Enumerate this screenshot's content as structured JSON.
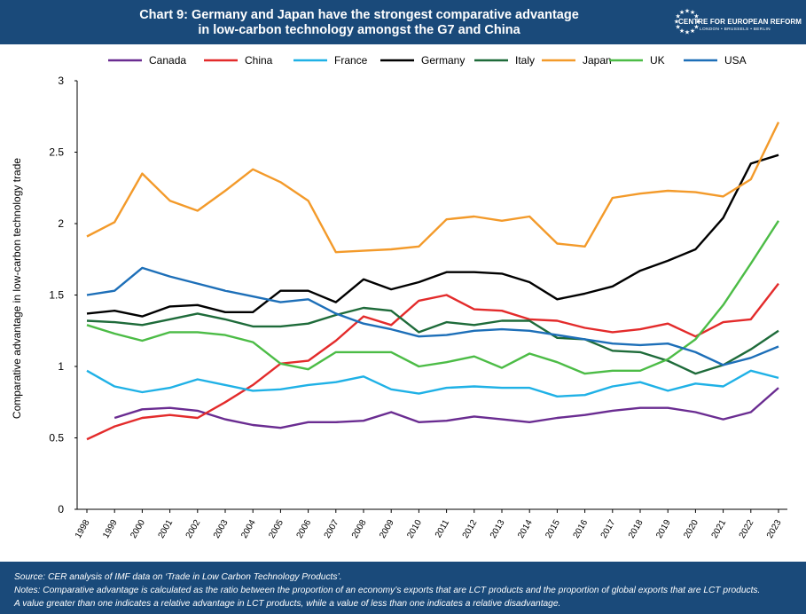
{
  "header": {
    "title_line1": "Chart 9: Germany and Japan have the strongest comparative advantage",
    "title_line2": "in low-carbon technology amongst the G7 and China",
    "logo_text": "CENTRE FOR EUROPEAN REFORM",
    "logo_subtext": "LONDON • BRUSSELS • BERLIN"
  },
  "footer": {
    "source": "Source: CER analysis of IMF data on ‘Trade in Low Carbon Technology Products’.",
    "notes_line1": "Notes: Comparative advantage is calculated as the ratio between the proportion of an economy’s exports that are LCT products and the proportion of global exports that are LCT products.",
    "notes_line2": "A value greater than one indicates a relative advantage in LCT products, while a value of less than one indicates a relative disadvantage."
  },
  "colors": {
    "brand": "#1a4a7a"
  },
  "chart_data": {
    "type": "line",
    "title": "Chart 9: Germany and Japan have the strongest comparative advantage in low-carbon technology amongst the G7 and China",
    "xlabel": "",
    "ylabel": "Comparative advantage in low-carbon technology trade",
    "ylim": [
      0,
      3
    ],
    "yticks": [
      "0",
      "0.5",
      "1",
      "1.5",
      "2",
      "2.5",
      "3"
    ],
    "grid": false,
    "legend_position": "top",
    "x": [
      "1998",
      "1999",
      "2000",
      "2001",
      "2002",
      "2003",
      "2004",
      "2005",
      "2006",
      "2007",
      "2008",
      "2009",
      "2010",
      "2011",
      "2012",
      "2013",
      "2014",
      "2015",
      "2016",
      "2017",
      "2018",
      "2019",
      "2020",
      "2021",
      "2022",
      "2023"
    ],
    "series": [
      {
        "name": "Canada",
        "color": "#6a2c91",
        "values": [
          null,
          0.64,
          0.7,
          0.71,
          0.69,
          0.63,
          0.59,
          0.57,
          0.61,
          0.61,
          0.62,
          0.68,
          0.61,
          0.62,
          0.65,
          0.63,
          0.61,
          0.64,
          0.66,
          0.69,
          0.71,
          0.71,
          0.68,
          0.63,
          0.68,
          0.85
        ]
      },
      {
        "name": "China",
        "color": "#e32b2b",
        "values": [
          0.49,
          0.58,
          0.64,
          0.66,
          0.64,
          0.75,
          0.87,
          1.02,
          1.04,
          1.18,
          1.35,
          1.29,
          1.46,
          1.5,
          1.4,
          1.39,
          1.33,
          1.32,
          1.27,
          1.24,
          1.26,
          1.3,
          1.21,
          1.31,
          1.33,
          1.58
        ]
      },
      {
        "name": "France",
        "color": "#1fb1e6",
        "values": [
          0.97,
          0.86,
          0.82,
          0.85,
          0.91,
          0.87,
          0.83,
          0.84,
          0.87,
          0.89,
          0.93,
          0.84,
          0.81,
          0.85,
          0.86,
          0.85,
          0.85,
          0.79,
          0.8,
          0.86,
          0.89,
          0.83,
          0.88,
          0.86,
          0.97,
          0.92
        ]
      },
      {
        "name": "Germany",
        "color": "#000000",
        "values": [
          1.37,
          1.39,
          1.35,
          1.42,
          1.43,
          1.38,
          1.38,
          1.53,
          1.53,
          1.45,
          1.61,
          1.54,
          1.59,
          1.66,
          1.66,
          1.65,
          1.59,
          1.47,
          1.51,
          1.56,
          1.67,
          1.74,
          1.82,
          2.04,
          2.42,
          2.48
        ]
      },
      {
        "name": "Italy",
        "color": "#1e6b3a",
        "values": [
          1.32,
          1.31,
          1.29,
          1.33,
          1.37,
          1.33,
          1.28,
          1.28,
          1.3,
          1.36,
          1.41,
          1.39,
          1.24,
          1.31,
          1.29,
          1.32,
          1.32,
          1.2,
          1.19,
          1.11,
          1.1,
          1.04,
          0.95,
          1.01,
          1.12,
          1.25
        ]
      },
      {
        "name": "Japan",
        "color": "#f39a2a",
        "values": [
          1.91,
          2.01,
          2.35,
          2.16,
          2.09,
          2.23,
          2.38,
          2.29,
          2.16,
          1.8,
          1.81,
          1.82,
          1.84,
          2.03,
          2.05,
          2.02,
          2.05,
          1.86,
          1.84,
          2.18,
          2.21,
          2.23,
          2.22,
          2.19,
          2.31,
          2.71
        ]
      },
      {
        "name": "UK",
        "color": "#4cbc46",
        "values": [
          1.29,
          1.23,
          1.18,
          1.24,
          1.24,
          1.22,
          1.17,
          1.02,
          0.98,
          1.1,
          1.1,
          1.1,
          1.0,
          1.03,
          1.07,
          0.99,
          1.09,
          1.03,
          0.95,
          0.97,
          0.97,
          1.05,
          1.19,
          1.43,
          1.72,
          2.02
        ]
      },
      {
        "name": "USA",
        "color": "#1d6fb8",
        "values": [
          1.5,
          1.53,
          1.69,
          1.63,
          1.58,
          1.53,
          1.49,
          1.45,
          1.47,
          1.37,
          1.3,
          1.26,
          1.21,
          1.22,
          1.25,
          1.26,
          1.25,
          1.22,
          1.19,
          1.16,
          1.15,
          1.16,
          1.1,
          1.01,
          1.06,
          1.14
        ]
      }
    ]
  }
}
